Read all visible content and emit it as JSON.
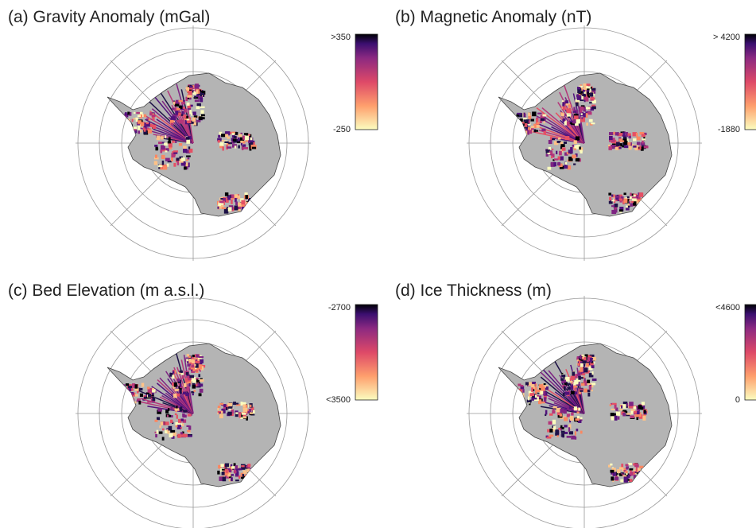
{
  "panels": [
    {
      "title": "(a) Gravity Anomaly (mGal)",
      "colorbar": {
        "top": ">350",
        "bottom": "-250"
      }
    },
    {
      "title": "(b) Magnetic Anomaly (nT)",
      "colorbar": {
        "top": "> 4200",
        "bottom": "-1880"
      }
    },
    {
      "title": "(c) Bed Elevation (m a.s.l.)",
      "colorbar": {
        "top": "-2700",
        "bottom": "<3500"
      }
    },
    {
      "title": "(d) Ice Thickness (m)",
      "colorbar": {
        "top": "<4600",
        "bottom": "0"
      }
    }
  ]
}
